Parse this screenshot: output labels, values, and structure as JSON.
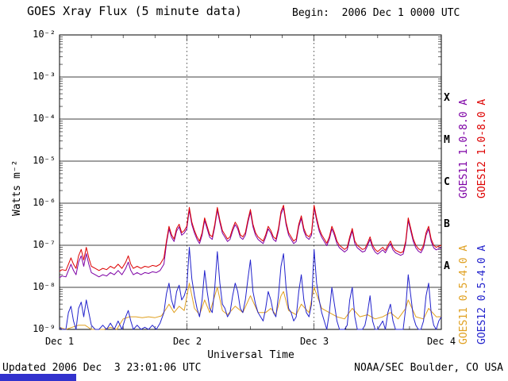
{
  "header": {
    "title": "GOES Xray Flux (5 minute data)",
    "begin_label": "Begin:  2006 Dec 1 0000 UTC"
  },
  "footer": {
    "updated": "Updated 2006 Dec  3 23:01:06 UTC",
    "credit": "NOAA/SEC Boulder, CO USA"
  },
  "chart_data": {
    "type": "line",
    "title": "GOES Xray Flux (5 minute data)",
    "xlabel": "Universal Time",
    "ylabel": "Watts m⁻²",
    "y_scale": "log10",
    "ylim": [
      1e-09,
      0.01
    ],
    "ylim_log10": [
      -9,
      -2
    ],
    "x_range_days": [
      0,
      3
    ],
    "begin": "2006 Dec 1 0000 UTC",
    "x_tick_labels": [
      "Dec 1",
      "Dec 2",
      "Dec 3",
      "Dec 4"
    ],
    "y_tick_labels": [
      "10⁻²",
      "10⁻³",
      "10⁻⁴",
      "10⁻⁵",
      "10⁻⁶",
      "10⁻⁷",
      "10⁻⁸",
      "10⁻⁹"
    ],
    "flare_class_labels": [
      "X",
      "M",
      "C",
      "B",
      "A"
    ],
    "flare_class_log10_midpoints": [
      -3.5,
      -4.5,
      -5.5,
      -6.5,
      -7.5
    ],
    "grid": {
      "horizontal": "solid per decade",
      "vertical": "dashed per day"
    },
    "right_labels": [
      {
        "text": "GOES11 1.0-8.0 A",
        "color": "#7d00a5"
      },
      {
        "text": "GOES12 1.0-8.0 A",
        "color": "#dd0000"
      },
      {
        "text": "GOES11 0.5-4.0 A",
        "color": "#e0a020"
      },
      {
        "text": "GOES12 0.5-4.0 A",
        "color": "#2222cc"
      }
    ],
    "t_days": [
      0.0,
      0.02,
      0.05,
      0.07,
      0.09,
      0.11,
      0.13,
      0.15,
      0.17,
      0.19,
      0.21,
      0.23,
      0.25,
      0.28,
      0.31,
      0.34,
      0.37,
      0.4,
      0.43,
      0.46,
      0.49,
      0.52,
      0.54,
      0.56,
      0.58,
      0.61,
      0.64,
      0.67,
      0.7,
      0.73,
      0.76,
      0.79,
      0.82,
      0.84,
      0.86,
      0.88,
      0.9,
      0.92,
      0.94,
      0.96,
      0.98,
      1.0,
      1.02,
      1.04,
      1.06,
      1.08,
      1.1,
      1.12,
      1.14,
      1.16,
      1.18,
      1.2,
      1.22,
      1.24,
      1.26,
      1.28,
      1.3,
      1.32,
      1.34,
      1.36,
      1.38,
      1.4,
      1.42,
      1.44,
      1.46,
      1.48,
      1.5,
      1.52,
      1.54,
      1.56,
      1.58,
      1.6,
      1.62,
      1.64,
      1.66,
      1.68,
      1.7,
      1.72,
      1.74,
      1.76,
      1.78,
      1.8,
      1.82,
      1.84,
      1.86,
      1.88,
      1.9,
      1.92,
      1.94,
      1.96,
      1.98,
      2.0,
      2.02,
      2.04,
      2.06,
      2.08,
      2.1,
      2.12,
      2.14,
      2.16,
      2.18,
      2.2,
      2.22,
      2.24,
      2.26,
      2.28,
      2.3,
      2.32,
      2.34,
      2.36,
      2.38,
      2.4,
      2.42,
      2.44,
      2.46,
      2.48,
      2.5,
      2.52,
      2.54,
      2.56,
      2.58,
      2.6,
      2.62,
      2.64,
      2.66,
      2.68,
      2.7,
      2.72,
      2.74,
      2.76,
      2.78,
      2.8,
      2.82,
      2.84,
      2.86,
      2.88,
      2.9,
      2.92,
      2.94,
      2.96,
      2.98,
      3.0
    ],
    "series": [
      {
        "name": "GOES11 0.5-4.0 A",
        "color": "#e0a020",
        "t_days": [
          0.0,
          0.05,
          0.1,
          0.15,
          0.2,
          0.25,
          0.3,
          0.35,
          0.4,
          0.45,
          0.5,
          0.55,
          0.6,
          0.65,
          0.7,
          0.75,
          0.8,
          0.84,
          0.86,
          0.9,
          0.94,
          0.98,
          1.02,
          1.06,
          1.1,
          1.14,
          1.18,
          1.24,
          1.28,
          1.32,
          1.38,
          1.44,
          1.5,
          1.56,
          1.62,
          1.66,
          1.7,
          1.74,
          1.76,
          1.8,
          1.86,
          1.9,
          1.96,
          2.0,
          2.06,
          2.12,
          2.18,
          2.24,
          2.3,
          2.36,
          2.42,
          2.48,
          2.54,
          2.6,
          2.66,
          2.72,
          2.74,
          2.8,
          2.86,
          2.9,
          2.96,
          3.0
        ],
        "log10_flux": [
          -8.95,
          -9.0,
          -8.95,
          -8.9,
          -8.9,
          -9.0,
          -9.0,
          -9.0,
          -8.95,
          -9.0,
          -8.75,
          -8.7,
          -8.7,
          -8.72,
          -8.7,
          -8.72,
          -8.68,
          -8.5,
          -8.4,
          -8.6,
          -8.45,
          -8.55,
          -7.9,
          -8.5,
          -8.65,
          -8.3,
          -8.6,
          -8.0,
          -8.55,
          -8.65,
          -8.45,
          -8.6,
          -8.2,
          -8.6,
          -8.6,
          -8.5,
          -8.65,
          -8.2,
          -8.1,
          -8.55,
          -8.65,
          -8.4,
          -8.6,
          -8.0,
          -8.5,
          -8.6,
          -8.7,
          -8.75,
          -8.5,
          -8.7,
          -8.65,
          -8.75,
          -8.7,
          -8.6,
          -8.75,
          -8.5,
          -8.3,
          -8.7,
          -8.75,
          -8.5,
          -8.7,
          -8.7
        ]
      },
      {
        "name": "GOES12 0.5-4.0 A",
        "color": "#2222cc",
        "log10_flux": [
          -8.95,
          -9.0,
          -9.0,
          -8.6,
          -8.45,
          -8.8,
          -9.0,
          -8.5,
          -8.35,
          -8.7,
          -8.3,
          -8.6,
          -8.9,
          -9.0,
          -9.0,
          -8.9,
          -9.0,
          -8.85,
          -9.0,
          -8.8,
          -9.0,
          -8.7,
          -8.55,
          -8.8,
          -9.0,
          -8.9,
          -9.0,
          -8.95,
          -9.0,
          -8.9,
          -9.0,
          -8.85,
          -8.6,
          -8.15,
          -7.9,
          -8.3,
          -8.5,
          -8.1,
          -7.95,
          -8.3,
          -8.2,
          -8.0,
          -7.05,
          -7.8,
          -8.2,
          -8.5,
          -8.7,
          -8.3,
          -7.6,
          -8.1,
          -8.5,
          -8.6,
          -8.0,
          -7.15,
          -7.9,
          -8.4,
          -8.5,
          -8.7,
          -8.6,
          -8.2,
          -7.9,
          -8.1,
          -8.5,
          -8.6,
          -8.3,
          -7.8,
          -7.35,
          -8.1,
          -8.4,
          -8.6,
          -8.7,
          -8.8,
          -8.5,
          -8.1,
          -8.3,
          -8.6,
          -8.7,
          -8.2,
          -7.5,
          -7.2,
          -8.0,
          -8.5,
          -8.6,
          -8.8,
          -8.7,
          -8.1,
          -7.7,
          -8.3,
          -8.6,
          -8.7,
          -8.4,
          -7.1,
          -7.9,
          -8.3,
          -8.6,
          -8.8,
          -9.0,
          -8.6,
          -8.0,
          -8.4,
          -8.8,
          -9.0,
          -9.0,
          -9.0,
          -8.9,
          -8.3,
          -8.0,
          -8.7,
          -9.0,
          -9.0,
          -9.0,
          -8.9,
          -8.6,
          -8.2,
          -8.8,
          -9.0,
          -9.0,
          -8.9,
          -8.8,
          -9.0,
          -8.6,
          -8.4,
          -8.8,
          -9.0,
          -9.0,
          -9.0,
          -9.0,
          -8.5,
          -7.7,
          -8.2,
          -8.7,
          -8.9,
          -9.0,
          -9.0,
          -8.8,
          -8.2,
          -7.9,
          -8.6,
          -8.9,
          -9.0,
          -8.8,
          -8.7
        ]
      },
      {
        "name": "GOES11 1.0-8.0 A",
        "color": "#7d00a5",
        "log10_flux": [
          -7.77,
          -7.73,
          -7.75,
          -7.6,
          -7.45,
          -7.6,
          -7.7,
          -7.4,
          -7.25,
          -7.5,
          -7.2,
          -7.45,
          -7.65,
          -7.7,
          -7.75,
          -7.7,
          -7.73,
          -7.65,
          -7.7,
          -7.6,
          -7.7,
          -7.55,
          -7.4,
          -7.6,
          -7.7,
          -7.65,
          -7.7,
          -7.65,
          -7.67,
          -7.63,
          -7.65,
          -7.6,
          -7.45,
          -6.96,
          -6.61,
          -6.81,
          -6.91,
          -6.66,
          -6.56,
          -6.76,
          -6.71,
          -6.61,
          -6.16,
          -6.51,
          -6.71,
          -6.86,
          -6.96,
          -6.76,
          -6.41,
          -6.61,
          -6.81,
          -6.86,
          -6.56,
          -6.16,
          -6.46,
          -6.71,
          -6.81,
          -6.91,
          -6.86,
          -6.66,
          -6.51,
          -6.61,
          -6.81,
          -6.86,
          -6.76,
          -6.46,
          -6.21,
          -6.56,
          -6.76,
          -6.86,
          -6.91,
          -6.96,
          -6.81,
          -6.61,
          -6.71,
          -6.86,
          -6.91,
          -6.66,
          -6.26,
          -6.11,
          -6.51,
          -6.76,
          -6.86,
          -6.96,
          -6.91,
          -6.56,
          -6.36,
          -6.66,
          -6.81,
          -6.86,
          -6.76,
          -6.11,
          -6.41,
          -6.66,
          -6.81,
          -6.91,
          -7.01,
          -6.86,
          -6.61,
          -6.76,
          -6.96,
          -7.06,
          -7.11,
          -7.16,
          -7.11,
          -6.86,
          -6.66,
          -6.96,
          -7.06,
          -7.11,
          -7.16,
          -7.14,
          -7.01,
          -6.86,
          -7.06,
          -7.16,
          -7.21,
          -7.16,
          -7.11,
          -7.18,
          -7.06,
          -6.96,
          -7.11,
          -7.18,
          -7.21,
          -7.24,
          -7.21,
          -6.96,
          -6.41,
          -6.66,
          -6.91,
          -7.06,
          -7.14,
          -7.18,
          -7.06,
          -6.76,
          -6.61,
          -6.91,
          -7.06,
          -7.11,
          -7.08,
          -7.06
        ]
      },
      {
        "name": "GOES12 1.0-8.0 A",
        "color": "#dd0000",
        "log10_flux": [
          -7.62,
          -7.58,
          -7.6,
          -7.45,
          -7.3,
          -7.45,
          -7.55,
          -7.25,
          -7.1,
          -7.35,
          -7.05,
          -7.3,
          -7.5,
          -7.55,
          -7.6,
          -7.55,
          -7.58,
          -7.5,
          -7.55,
          -7.45,
          -7.55,
          -7.4,
          -7.25,
          -7.45,
          -7.55,
          -7.5,
          -7.55,
          -7.5,
          -7.52,
          -7.48,
          -7.5,
          -7.45,
          -7.3,
          -6.9,
          -6.55,
          -6.75,
          -6.85,
          -6.6,
          -6.5,
          -6.7,
          -6.65,
          -6.55,
          -6.1,
          -6.45,
          -6.65,
          -6.8,
          -6.9,
          -6.7,
          -6.35,
          -6.55,
          -6.75,
          -6.8,
          -6.5,
          -6.1,
          -6.4,
          -6.65,
          -6.75,
          -6.85,
          -6.8,
          -6.6,
          -6.45,
          -6.55,
          -6.75,
          -6.8,
          -6.7,
          -6.4,
          -6.15,
          -6.5,
          -6.7,
          -6.8,
          -6.85,
          -6.9,
          -6.75,
          -6.55,
          -6.65,
          -6.8,
          -6.85,
          -6.6,
          -6.2,
          -6.05,
          -6.45,
          -6.7,
          -6.8,
          -6.9,
          -6.85,
          -6.5,
          -6.3,
          -6.6,
          -6.75,
          -6.8,
          -6.7,
          -6.05,
          -6.35,
          -6.6,
          -6.75,
          -6.85,
          -6.95,
          -6.8,
          -6.55,
          -6.7,
          -6.9,
          -7.0,
          -7.05,
          -7.1,
          -7.05,
          -6.8,
          -6.6,
          -6.9,
          -7.0,
          -7.05,
          -7.1,
          -7.08,
          -6.95,
          -6.8,
          -7.0,
          -7.1,
          -7.15,
          -7.1,
          -7.05,
          -7.12,
          -7.0,
          -6.9,
          -7.05,
          -7.12,
          -7.15,
          -7.18,
          -7.15,
          -6.9,
          -6.35,
          -6.6,
          -6.85,
          -7.0,
          -7.08,
          -7.12,
          -7.0,
          -6.7,
          -6.55,
          -6.85,
          -7.0,
          -7.05,
          -7.02,
          -7.0
        ]
      }
    ]
  }
}
